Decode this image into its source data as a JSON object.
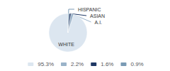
{
  "chart_data": {
    "type": "pie",
    "categories": [
      "WHITE",
      "A.I.",
      "ASIAN",
      "HISPANIC"
    ],
    "values": [
      95.3,
      2.2,
      1.6,
      0.9
    ],
    "value_labels": [
      "95.3%",
      "2.2%",
      "1.6%",
      "0.9%"
    ],
    "colors": [
      "#dce6f0",
      "#9ab3c9",
      "#1f3864",
      "#7a9bb5"
    ],
    "legend": "bottom"
  }
}
